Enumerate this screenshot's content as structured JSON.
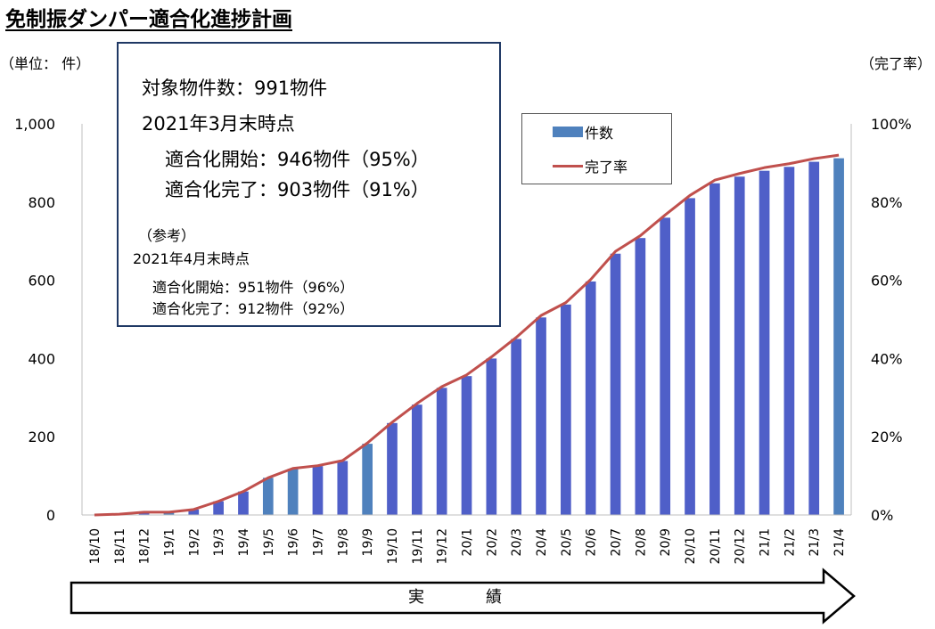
{
  "title": "免制振ダンパー適合化進捗計画",
  "unit_left": "（単位： 件）",
  "unit_right": "（完了率）",
  "info_box": {
    "line1": "対象物件数：991物件",
    "line2": "2021年3月末時点",
    "line3": "適合化開始：946物件（95%）",
    "line4": "適合化完了：903物件（91%）",
    "ref_label": "（参考）",
    "ref_date": "2021年4月末時点",
    "ref_start": "適合化開始：951物件（96%）",
    "ref_done": "適合化完了：912物件（92%）"
  },
  "legend": {
    "bar_label": "件数",
    "line_label": "完了率"
  },
  "arrow": {
    "char1": "実",
    "char2": "績"
  },
  "colors": {
    "bar_dark": "#4f5fc8",
    "bar_light": "#4f81bd",
    "line": "#c0504d",
    "box_border": "#1f3864"
  },
  "chart_data": {
    "type": "bar",
    "categories": [
      "18/10",
      "18/11",
      "18/12",
      "19/1",
      "19/2",
      "19/3",
      "19/4",
      "19/5",
      "19/6",
      "19/7",
      "19/8",
      "19/9",
      "19/10",
      "19/11",
      "19/12",
      "20/1",
      "20/2",
      "20/3",
      "20/4",
      "20/5",
      "20/6",
      "20/7",
      "20/8",
      "20/9",
      "20/10",
      "20/11",
      "20/12",
      "21/1",
      "21/2",
      "21/3",
      "21/4"
    ],
    "series": [
      {
        "name": "件数",
        "kind": "bar",
        "axis": "left",
        "values": [
          0,
          2,
          7,
          7,
          14,
          35,
          60,
          95,
          118,
          125,
          138,
          182,
          235,
          282,
          325,
          355,
          400,
          450,
          505,
          538,
          597,
          668,
          708,
          760,
          810,
          848,
          865,
          880,
          890,
          903,
          912
        ],
        "light_indices": [
          3,
          7,
          8,
          11,
          30
        ]
      },
      {
        "name": "完了率",
        "kind": "line",
        "axis": "right",
        "values": [
          0.0,
          0.2,
          0.7,
          0.7,
          1.4,
          3.5,
          6.0,
          9.5,
          11.9,
          12.6,
          13.9,
          18.4,
          23.7,
          28.5,
          32.8,
          35.8,
          40.4,
          45.4,
          51.0,
          54.3,
          60.2,
          67.4,
          71.4,
          76.7,
          81.7,
          85.6,
          87.3,
          88.8,
          89.8,
          91.1,
          92.0
        ]
      }
    ],
    "y_left": {
      "min": 0,
      "max": 1000,
      "ticks": [
        0,
        200,
        400,
        600,
        800,
        1000
      ],
      "tick_labels": [
        "0",
        "200",
        "400",
        "600",
        "800",
        "1,000"
      ]
    },
    "y_right": {
      "min": 0,
      "max": 100,
      "ticks": [
        0,
        20,
        40,
        60,
        80,
        100
      ],
      "tick_labels": [
        "0%",
        "20%",
        "40%",
        "60%",
        "80%",
        "100%"
      ]
    },
    "legend_position": "top-right",
    "grid": false
  }
}
